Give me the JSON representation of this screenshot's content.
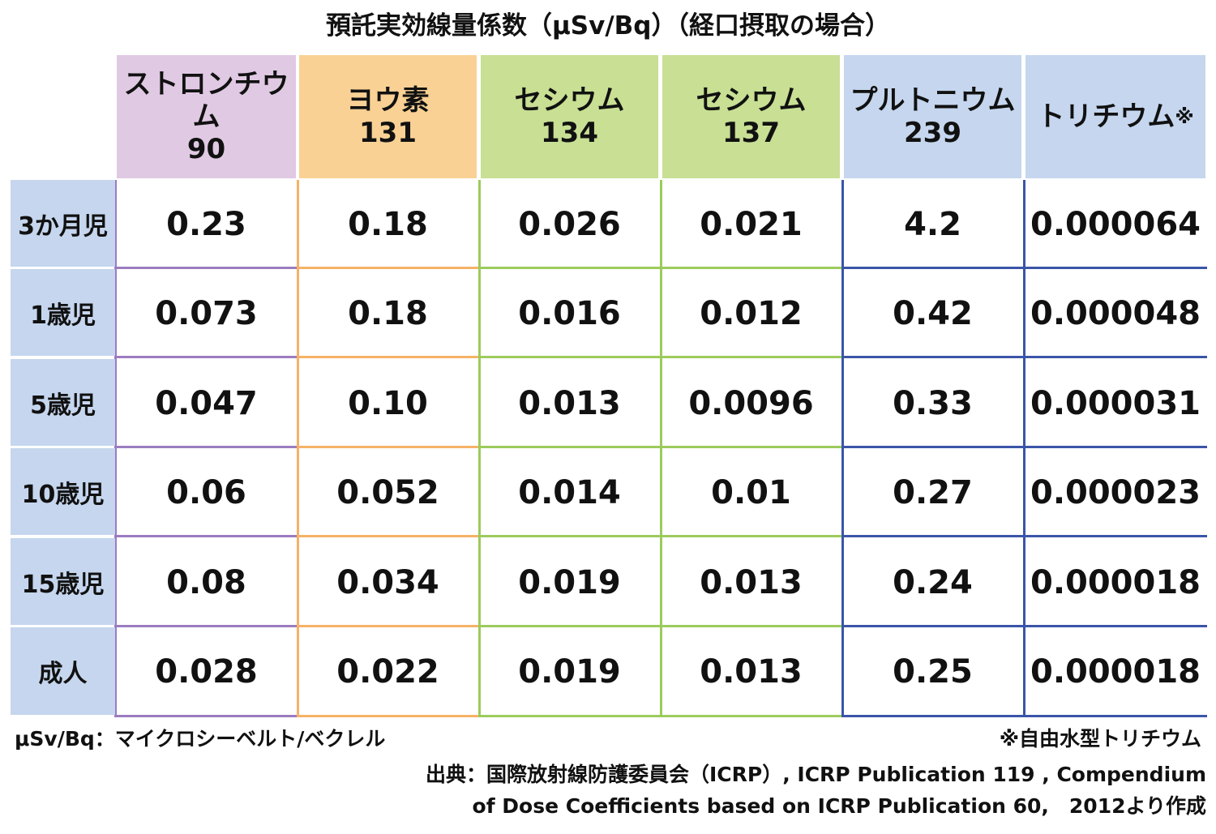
{
  "title": "預託実効線量係数（μSv/Bq）（経口摂取の場合）",
  "columns": [
    {
      "line1": "ストロンチウム",
      "line2": "90",
      "bg": "#e0c9e3",
      "line": "#9b7cc0"
    },
    {
      "line1": "ヨウ素",
      "line2": "131",
      "bg": "#f9d194",
      "line": "#f6b266"
    },
    {
      "line1": "セシウム",
      "line2": "134",
      "bg": "#c8df94",
      "line": "#9ccb5c"
    },
    {
      "line1": "セシウム",
      "line2": "137",
      "bg": "#c8df94",
      "line": "#9ccb5c"
    },
    {
      "line1": "プルトニウム",
      "line2": "239",
      "bg": "#c5d6ee",
      "line": "#3a55a8"
    },
    {
      "line1": "トリチウム",
      "mark": "※",
      "line2": "",
      "bg": "#c5d6ee",
      "line": "#3a55a8"
    }
  ],
  "rows": [
    {
      "label": "3か月児",
      "values": [
        "0.23",
        "0.18",
        "0.026",
        "0.021",
        "4.2",
        "0.000064"
      ]
    },
    {
      "label": "1歳児",
      "values": [
        "0.073",
        "0.18",
        "0.016",
        "0.012",
        "0.42",
        "0.000048"
      ]
    },
    {
      "label": "5歳児",
      "values": [
        "0.047",
        "0.10",
        "0.013",
        "0.0096",
        "0.33",
        "0.000031"
      ]
    },
    {
      "label": "10歳児",
      "values": [
        "0.06",
        "0.052",
        "0.014",
        "0.01",
        "0.27",
        "0.000023"
      ]
    },
    {
      "label": "15歳児",
      "values": [
        "0.08",
        "0.034",
        "0.019",
        "0.013",
        "0.24",
        "0.000018"
      ]
    },
    {
      "label": "成人",
      "values": [
        "0.028",
        "0.022",
        "0.019",
        "0.013",
        "0.25",
        "0.000018"
      ]
    }
  ],
  "notes": {
    "unit": "μSv/Bq：マイクロシーベルト/ベクレル",
    "tritium": "※自由水型トリチウム",
    "source1": "出典：国際放射線防護委員会（ICRP）, ICRP Publication 119 , Compendium",
    "source2": "of  Dose Coefficients based on ICRP Publication 60,　2012より作成"
  }
}
